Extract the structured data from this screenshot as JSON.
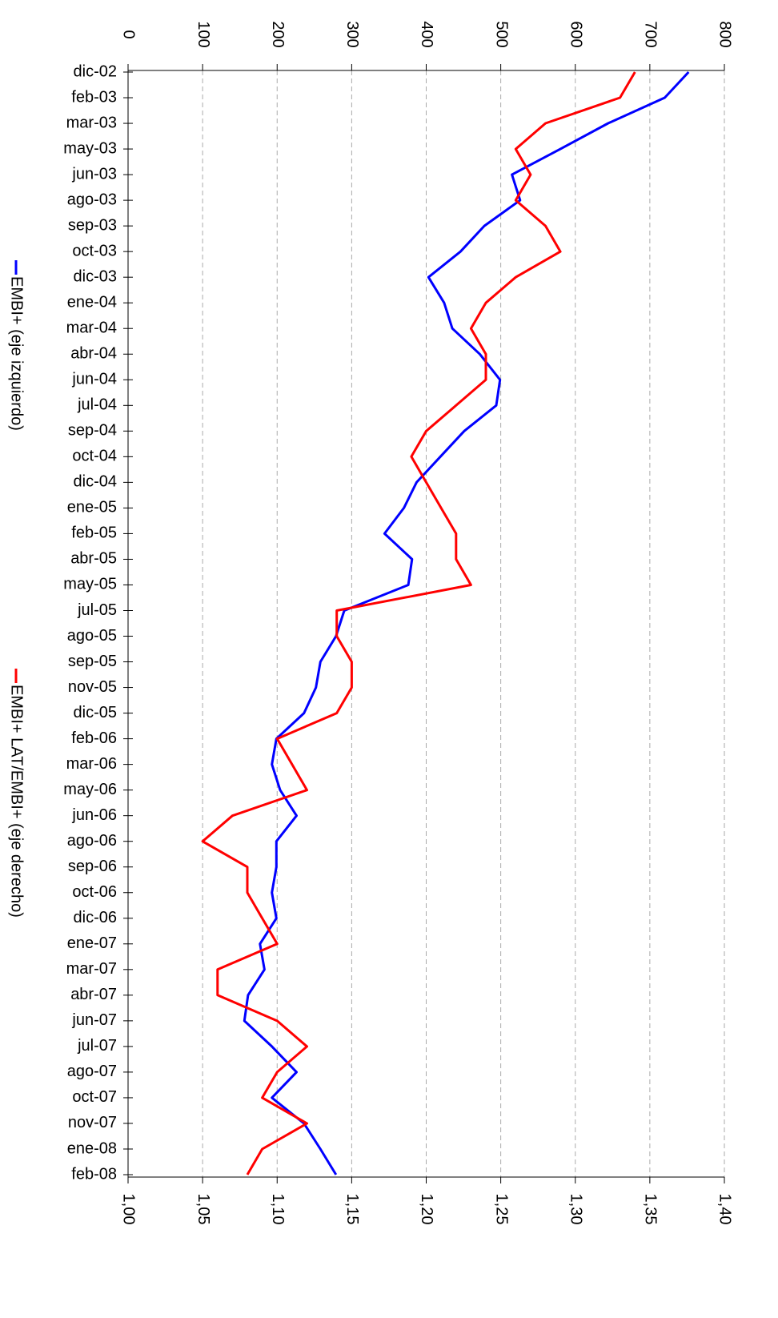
{
  "chart_data": {
    "type": "line",
    "categories": [
      "dic-02",
      "feb-03",
      "mar-03",
      "may-03",
      "jun-03",
      "ago-03",
      "sep-03",
      "oct-03",
      "dic-03",
      "ene-04",
      "mar-04",
      "abr-04",
      "jun-04",
      "jul-04",
      "sep-04",
      "oct-04",
      "dic-04",
      "ene-05",
      "feb-05",
      "abr-05",
      "may-05",
      "jul-05",
      "ago-05",
      "sep-05",
      "nov-05",
      "dic-05",
      "feb-06",
      "mar-06",
      "may-06",
      "jun-06",
      "ago-06",
      "sep-06",
      "oct-06",
      "dic-06",
      "ene-07",
      "mar-07",
      "abr-07",
      "jun-07",
      "jul-07",
      "ago-07",
      "oct-07",
      "nov-07",
      "ene-08",
      "feb-08"
    ],
    "series": [
      {
        "name": "EMBI+ (eje izquierdo)",
        "color": "#0000ff",
        "axis": "y",
        "values": [
          752,
          720,
          644,
          580,
          515,
          526,
          478,
          446,
          403,
          424,
          435,
          472,
          499,
          494,
          451,
          419,
          387,
          370,
          344,
          381,
          376,
          290,
          279,
          258,
          252,
          236,
          199,
          193,
          204,
          226,
          199,
          199,
          193,
          199,
          177,
          183,
          161,
          156,
          193,
          226,
          193,
          236,
          258,
          279
        ]
      },
      {
        "name": "EMBI+ LAT/EMBI+ (eje derecho)",
        "color": "#ff0000",
        "axis": "y2",
        "values": [
          1.34,
          1.33,
          1.28,
          1.26,
          1.27,
          1.26,
          1.28,
          1.29,
          1.26,
          1.24,
          1.23,
          1.24,
          1.24,
          1.22,
          1.2,
          1.19,
          1.2,
          1.21,
          1.22,
          1.22,
          1.23,
          1.14,
          1.14,
          1.15,
          1.15,
          1.14,
          1.1,
          1.11,
          1.12,
          1.07,
          1.05,
          1.08,
          1.08,
          1.09,
          1.1,
          1.06,
          1.06,
          1.1,
          1.12,
          1.1,
          1.09,
          1.12,
          1.09,
          1.08
        ]
      }
    ],
    "ylim": [
      0,
      800
    ],
    "yticks": [
      0,
      100,
      200,
      300,
      400,
      500,
      600,
      700,
      800
    ],
    "y2lim": [
      1,
      1.4
    ],
    "y2ticks": [
      {
        "value": 1,
        "label": "1,00"
      },
      {
        "value": 1.05,
        "label": "1,05"
      },
      {
        "value": 1.1,
        "label": "1,10"
      },
      {
        "value": 1.15,
        "label": "1,15"
      },
      {
        "value": 1.2,
        "label": "1,20"
      },
      {
        "value": 1.25,
        "label": "1,25"
      },
      {
        "value": 1.3,
        "label": "1,30"
      },
      {
        "value": 1.35,
        "label": "1,35"
      },
      {
        "value": 1.4,
        "label": "1,40"
      }
    ],
    "grid": true,
    "legend": "left"
  }
}
